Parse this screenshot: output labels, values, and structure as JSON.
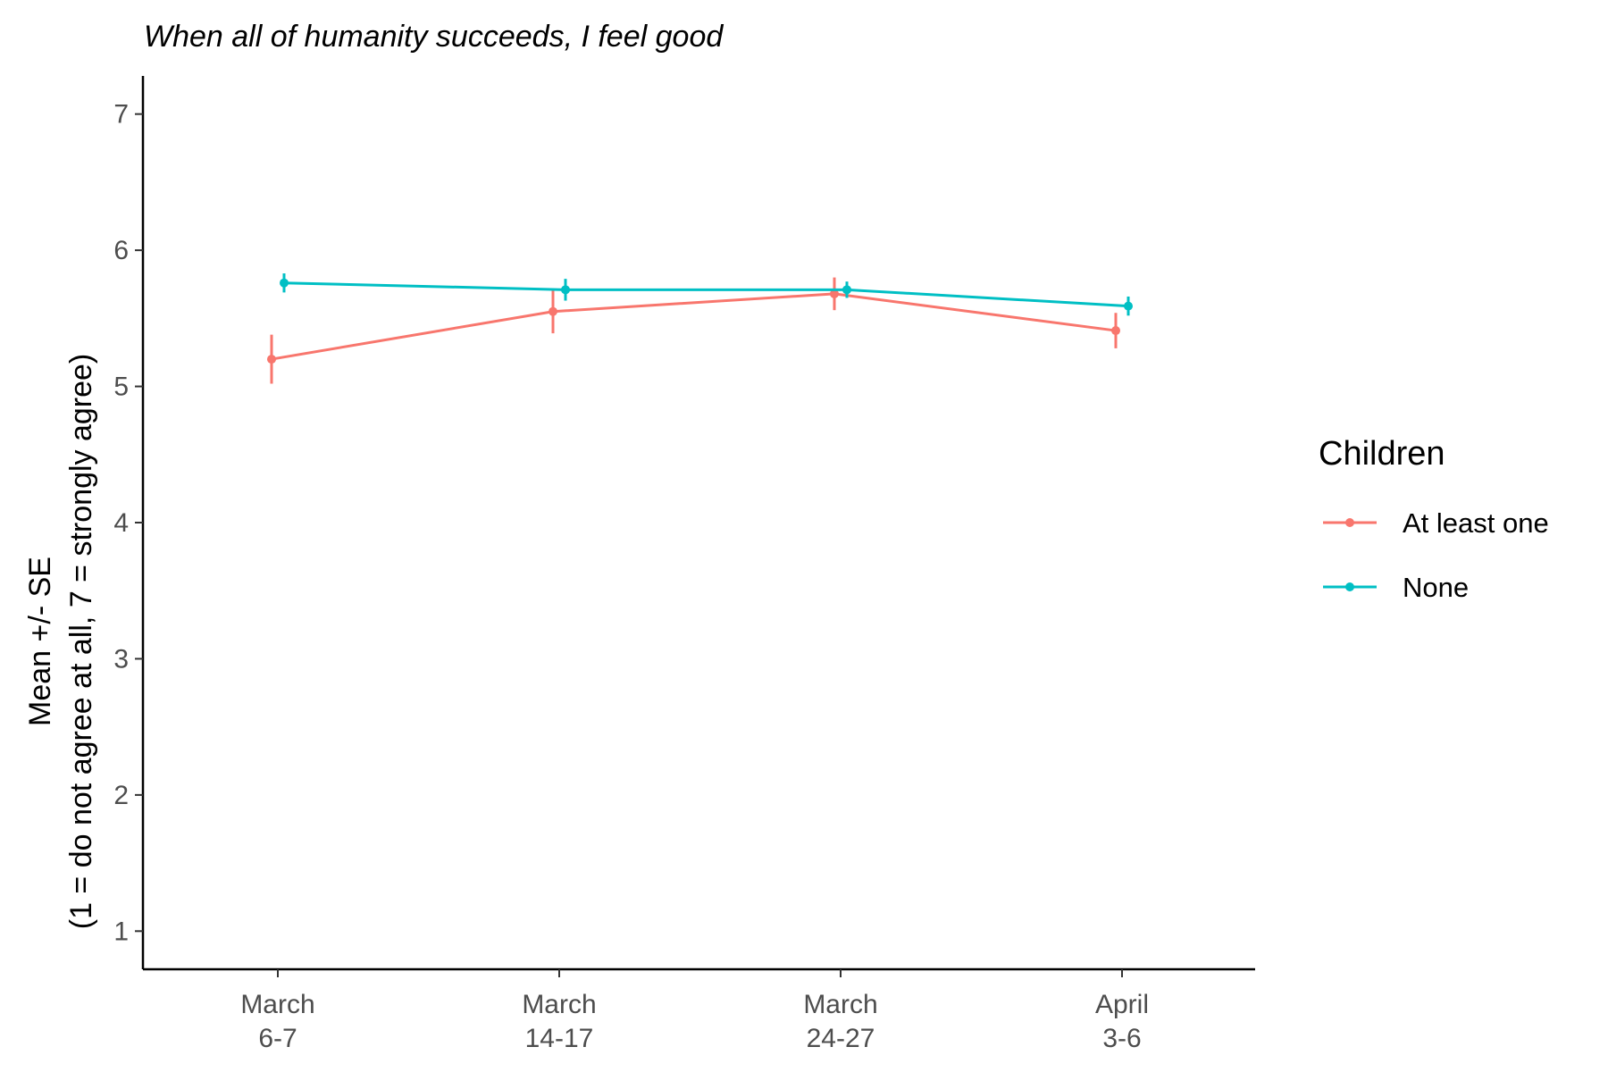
{
  "chart_data": {
    "type": "line",
    "title": "When all of humanity succeeds, I feel good",
    "ylabel_line1": "Mean +/- SE",
    "ylabel_line2": "(1 = do not agree at all, 7 = strongly agree)",
    "xlabel": "",
    "ylim": [
      0.72,
      7.28
    ],
    "yticks": [
      1,
      2,
      3,
      4,
      5,
      6,
      7
    ],
    "categories": [
      {
        "line1": "March",
        "line2": "6-7"
      },
      {
        "line1": "March",
        "line2": "14-17"
      },
      {
        "line1": "March",
        "line2": "24-27"
      },
      {
        "line1": "April",
        "line2": "3-6"
      }
    ],
    "legend": {
      "title": "Children",
      "position": "right"
    },
    "grid": false,
    "series": [
      {
        "name": "At least one",
        "color": "#F8766D",
        "values": [
          5.2,
          5.55,
          5.68,
          5.41
        ],
        "se": [
          0.18,
          0.16,
          0.12,
          0.13
        ]
      },
      {
        "name": "None",
        "color": "#00BFC4",
        "values": [
          5.76,
          5.71,
          5.71,
          5.59
        ],
        "se": [
          0.07,
          0.08,
          0.06,
          0.07
        ]
      }
    ]
  }
}
